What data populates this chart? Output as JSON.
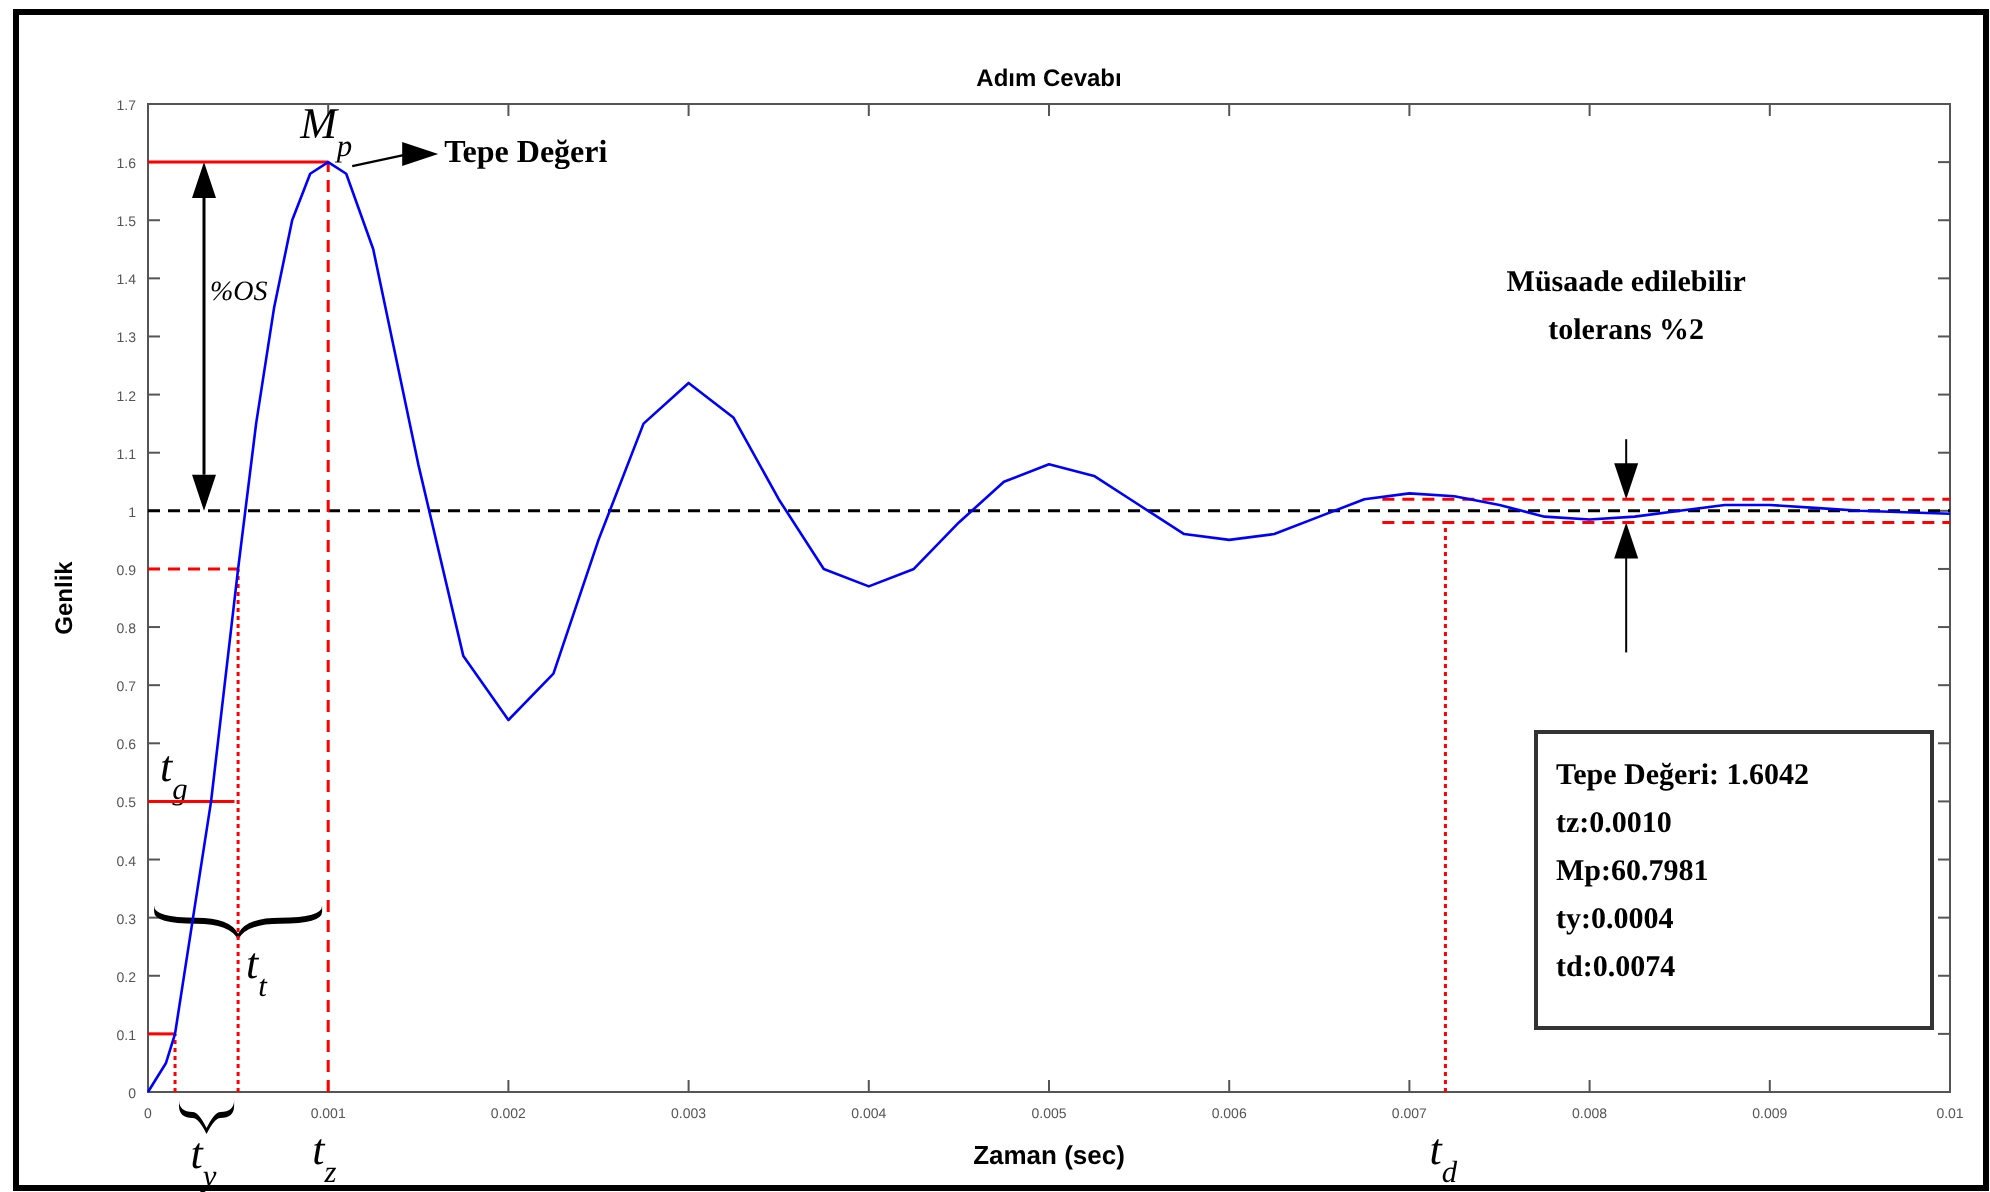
{
  "chart_data": {
    "type": "line",
    "title": "Adım Cevabı",
    "xlabel": "Zaman (sec)",
    "ylabel": "Genlik",
    "xlim": [
      0,
      0.01
    ],
    "xticks": [
      0,
      0.001,
      0.002,
      0.003,
      0.004,
      0.005,
      0.006,
      0.007,
      0.008,
      0.009,
      0.01
    ],
    "ylim": [
      0,
      1.7
    ],
    "yticks": [
      0,
      0.1,
      0.2,
      0.3,
      0.4,
      0.5,
      0.6,
      0.7,
      0.8,
      0.9,
      1,
      1.1,
      1.2,
      1.3,
      1.4,
      1.5,
      1.6,
      1.7
    ],
    "grid": false,
    "marker": "none",
    "line_style": "solid",
    "series": [
      {
        "color": "#0000ff",
        "x": [
          0,
          0.0001,
          0.00015,
          0.00025,
          0.00035,
          0.0005,
          0.0006,
          0.0007,
          0.0008,
          0.0009,
          0.001,
          0.0011,
          0.00125,
          0.0015,
          0.00175,
          0.002,
          0.00225,
          0.0025,
          0.00275,
          0.003,
          0.00325,
          0.0035,
          0.00375,
          0.004,
          0.00425,
          0.0045,
          0.00475,
          0.005,
          0.00525,
          0.0055,
          0.00575,
          0.006,
          0.00625,
          0.0065,
          0.00675,
          0.007,
          0.00725,
          0.0075,
          0.00775,
          0.008,
          0.00825,
          0.0085,
          0.00875,
          0.009,
          0.00925,
          0.0095,
          0.01
        ],
        "values": [
          0,
          0.05,
          0.1,
          0.3,
          0.5,
          0.9,
          1.15,
          1.35,
          1.5,
          1.58,
          1.6,
          1.58,
          1.45,
          1.08,
          0.75,
          0.64,
          0.72,
          0.95,
          1.15,
          1.22,
          1.16,
          1.02,
          0.9,
          0.87,
          0.9,
          0.98,
          1.05,
          1.08,
          1.06,
          1.01,
          0.96,
          0.95,
          0.96,
          0.99,
          1.02,
          1.03,
          1.025,
          1.01,
          0.99,
          0.985,
          0.99,
          1,
          1.01,
          1.01,
          1.005,
          1,
          0.995
        ]
      },
      {
        "color": "#ff0000",
        "line_style": "solid",
        "x": [
          0,
          0.001
        ],
        "values": [
          1.6,
          1.6
        ]
      },
      {
        "color": "#ff0000",
        "line_style": "dashed",
        "x": [
          0.001,
          0.001
        ],
        "values": [
          0,
          1.6
        ]
      },
      {
        "color": "#ff0000",
        "line_style": "dashed",
        "x": [
          0,
          0.0005
        ],
        "values": [
          0.9,
          0.9
        ]
      },
      {
        "color": "#ff0000",
        "line_style": "dotted",
        "x": [
          0.0005,
          0.0005
        ],
        "values": [
          0,
          0.9
        ]
      },
      {
        "color": "#ff0000",
        "line_style": "solid",
        "x": [
          0,
          0.00048
        ],
        "values": [
          0.5,
          0.5
        ]
      },
      {
        "color": "#ff0000",
        "line_style": "solid",
        "x": [
          0,
          0.00015
        ],
        "values": [
          0.1,
          0.1
        ]
      },
      {
        "color": "#ff0000",
        "line_style": "dotted",
        "x": [
          0.00015,
          0.00015
        ],
        "values": [
          0,
          0.1
        ]
      },
      {
        "color": "#ff0000",
        "line_style": "dotted",
        "x": [
          0.0072,
          0.0072
        ],
        "values": [
          0,
          0.98
        ]
      },
      {
        "color": "#ff0000",
        "line_style": "dashed",
        "x": [
          0.00685,
          0.01
        ],
        "values": [
          0.98,
          0.98
        ]
      },
      {
        "color": "#ff0000",
        "line_style": "dashed",
        "x": [
          0.00685,
          0.01
        ],
        "values": [
          1.02,
          1.02
        ]
      }
    ],
    "ref_lines": [
      {
        "axis": "y",
        "value": 1,
        "color": "#000000",
        "line_style": "dashed"
      }
    ],
    "annotations": [
      "%OS",
      "Tepe Değeri",
      "t$_{y}$",
      {
        "text": "t$_{t}$",
        "x": 0.0005,
        "y": 0.3
      },
      "Müsaade edilebilir\ntolerans %2",
      "Tepe Değeri: 1.6042",
      "tz:0.0010",
      "Mp:60.7981",
      "ty:0.0004",
      "td:0.0074",
      {
        "text": "M$_{p}$",
        "x": 0.001,
        "y": 1.6
      },
      {
        "text": "t$_{g}$",
        "x": 0,
        "y": 0.5
      },
      {
        "text": "t$_{z}$",
        "x": 0.001,
        "y": 0
      },
      {
        "text": "t$_{d}$",
        "x": 0.0072,
        "y": 0
      }
    ]
  }
}
